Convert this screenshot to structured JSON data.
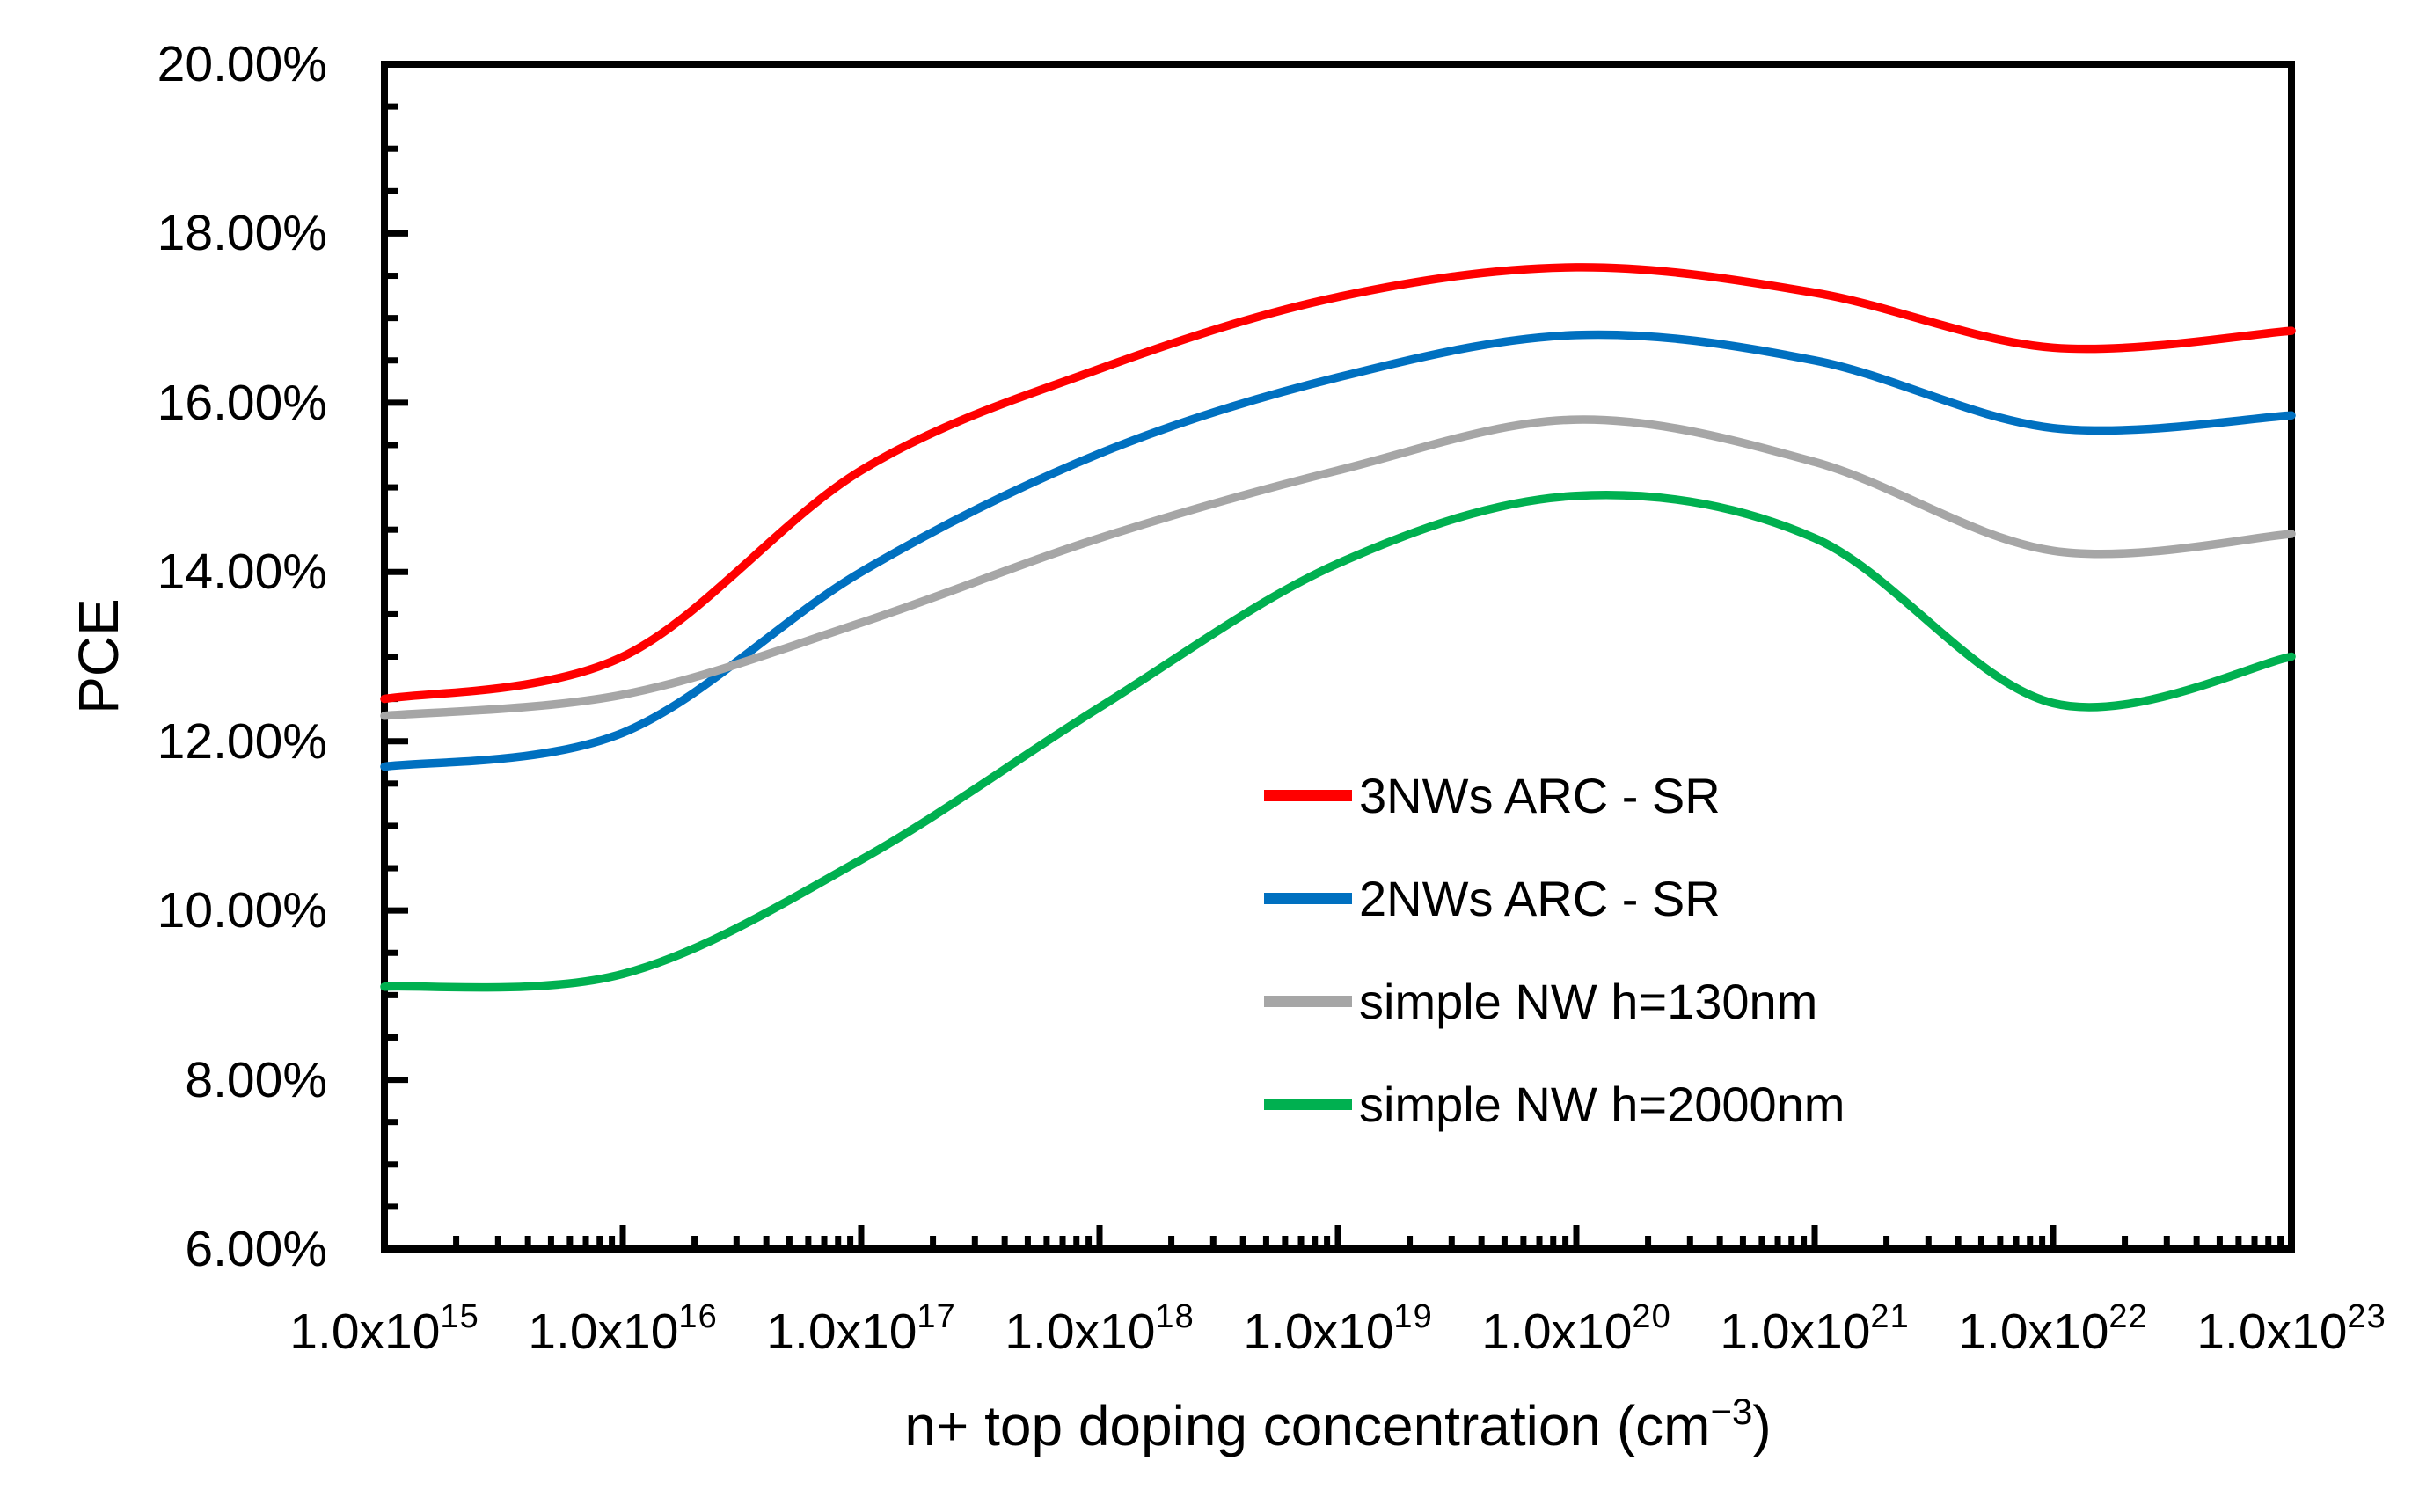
{
  "chart_data": {
    "type": "line",
    "title": "",
    "x_scale": "log",
    "grid": false,
    "legend_position": "inside-right-center",
    "y_axis": {
      "title": "PCE",
      "tick_labels": [
        "20.00%",
        "18.00%",
        "16.00%",
        "14.00%",
        "12.00%",
        "10.00%",
        "8.00%",
        "6.00%"
      ],
      "tick_values_pct": [
        20,
        18,
        16,
        14,
        12,
        10,
        8,
        6
      ],
      "min_pct": 6,
      "max_pct": 20,
      "major_step_pct": 2,
      "minor_step_pct": 0.5
    },
    "x_axis": {
      "title": {
        "pre": "n+ top doping concentration (cm",
        "sup": "−3",
        "post": ")"
      },
      "exponent_min": 15,
      "exponent_max": 23,
      "tick_labels": [
        {
          "mantissa": "1.0x10",
          "exponent": "15"
        },
        {
          "mantissa": "1.0x10",
          "exponent": "16"
        },
        {
          "mantissa": "1.0x10",
          "exponent": "17"
        },
        {
          "mantissa": "1.0x10",
          "exponent": "18"
        },
        {
          "mantissa": "1.0x10",
          "exponent": "19"
        },
        {
          "mantissa": "1.0x10",
          "exponent": "20"
        },
        {
          "mantissa": "1.0x10",
          "exponent": "21"
        },
        {
          "mantissa": "1.0x10",
          "exponent": "22"
        },
        {
          "mantissa": "1.0x10",
          "exponent": "23"
        }
      ]
    },
    "x_exponents": [
      15,
      16,
      17,
      18,
      19,
      20,
      21,
      22,
      23
    ],
    "series": [
      {
        "name": "3NWs ARC - SR",
        "color": "#FF0000",
        "values_pct": [
          12.5,
          13.0,
          15.2,
          16.4,
          17.25,
          17.6,
          17.3,
          16.65,
          16.85
        ]
      },
      {
        "name": "2NWs ARC - SR",
        "color": "#0070C0",
        "values_pct": [
          11.7,
          12.1,
          14.0,
          15.4,
          16.3,
          16.8,
          16.5,
          15.7,
          15.85
        ]
      },
      {
        "name": "simple NW h=130nm",
        "color": "#A6A6A6",
        "values_pct": [
          12.3,
          12.55,
          13.4,
          14.4,
          15.2,
          15.8,
          15.3,
          14.25,
          14.45
        ]
      },
      {
        "name": "simple NW h=2000nm",
        "color": "#00B050",
        "values_pct": [
          9.1,
          9.25,
          10.6,
          12.4,
          14.1,
          14.9,
          14.4,
          12.45,
          13.0
        ]
      }
    ],
    "axis_color": "#000000"
  }
}
